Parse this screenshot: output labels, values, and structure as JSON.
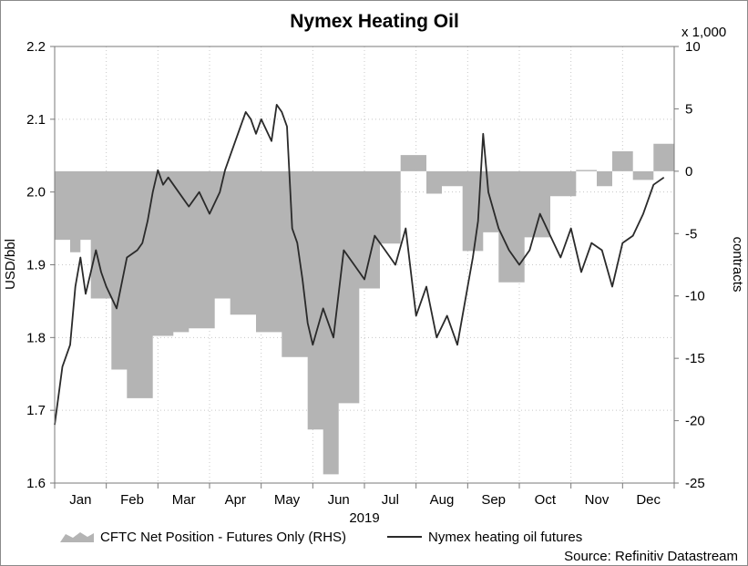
{
  "chart_data": {
    "type": "line",
    "title": "Nymex Heating Oil",
    "xlabel": "2019",
    "ylabel": "USD/bbl",
    "y2label": "contracts",
    "y2_multiplier_label": "x 1,000",
    "ylim": [
      1.6,
      2.2
    ],
    "y2lim": [
      -25,
      10
    ],
    "yticks": [
      "1.6",
      "1.7",
      "1.8",
      "1.9",
      "2.0",
      "2.1",
      "2.2"
    ],
    "y2ticks": [
      "-25",
      "-20",
      "-15",
      "-10",
      "-5",
      "0",
      "5",
      "10"
    ],
    "months": [
      "Jan",
      "Feb",
      "Mar",
      "Apr",
      "May",
      "Jun",
      "Jul",
      "Aug",
      "Sep",
      "Oct",
      "Nov",
      "Dec"
    ],
    "grid": true,
    "legend_position": "bottom",
    "source": "Source: Refinitiv Datastream",
    "series": [
      {
        "name": "CFTC Net Position - Futures Only (RHS)",
        "type": "area-step",
        "axis": "right",
        "color": "#b4b4b4",
        "x": [
          0,
          0.3,
          0.5,
          0.7,
          1.1,
          1.4,
          1.9,
          2.3,
          2.6,
          3.1,
          3.4,
          3.9,
          4.4,
          4.9,
          5.2,
          5.5,
          5.9,
          6.3,
          6.7,
          7.2,
          7.5,
          7.9,
          8.3,
          8.6,
          9.1,
          9.6,
          10.1,
          10.5,
          10.8,
          11.2,
          11.6,
          11.85
        ],
        "values": [
          -5.5,
          -6.5,
          -5.5,
          -10.2,
          -15.9,
          -18.2,
          -13.2,
          -12.9,
          -12.6,
          -10.2,
          -11.5,
          -12.9,
          -14.9,
          -20.7,
          -24.3,
          -18.6,
          -9.4,
          -5.8,
          1.3,
          -1.8,
          -1.2,
          -6.4,
          -4.9,
          -8.9,
          -5.3,
          -2.0,
          0.1,
          -1.2,
          1.6,
          -0.7,
          2.2,
          2.2
        ]
      },
      {
        "name": "Nymex heating oil futures",
        "type": "line",
        "axis": "left",
        "color": "#2a2a2a",
        "x": [
          0,
          0.15,
          0.3,
          0.4,
          0.5,
          0.6,
          0.7,
          0.8,
          0.9,
          1.0,
          1.2,
          1.4,
          1.6,
          1.7,
          1.8,
          1.9,
          2.0,
          2.1,
          2.2,
          2.4,
          2.6,
          2.8,
          3.0,
          3.2,
          3.3,
          3.5,
          3.6,
          3.7,
          3.8,
          3.9,
          4.0,
          4.2,
          4.3,
          4.4,
          4.5,
          4.6,
          4.7,
          4.8,
          4.9,
          5.0,
          5.2,
          5.4,
          5.6,
          5.8,
          6.0,
          6.2,
          6.4,
          6.6,
          6.8,
          7.0,
          7.2,
          7.4,
          7.6,
          7.8,
          8.0,
          8.1,
          8.2,
          8.3,
          8.4,
          8.6,
          8.8,
          9.0,
          9.2,
          9.4,
          9.6,
          9.8,
          10.0,
          10.2,
          10.4,
          10.6,
          10.8,
          11.0,
          11.2,
          11.4,
          11.6,
          11.8
        ],
        "values": [
          1.68,
          1.76,
          1.79,
          1.87,
          1.91,
          1.86,
          1.89,
          1.92,
          1.89,
          1.87,
          1.84,
          1.91,
          1.92,
          1.93,
          1.96,
          2.0,
          2.03,
          2.01,
          2.02,
          2.0,
          1.98,
          2.0,
          1.97,
          2.0,
          2.03,
          2.07,
          2.09,
          2.11,
          2.1,
          2.08,
          2.1,
          2.07,
          2.12,
          2.11,
          2.09,
          1.95,
          1.93,
          1.88,
          1.82,
          1.79,
          1.84,
          1.8,
          1.92,
          1.9,
          1.88,
          1.94,
          1.92,
          1.9,
          1.95,
          1.83,
          1.87,
          1.8,
          1.83,
          1.79,
          1.87,
          1.91,
          1.96,
          2.08,
          2.0,
          1.95,
          1.92,
          1.9,
          1.92,
          1.97,
          1.94,
          1.91,
          1.95,
          1.89,
          1.93,
          1.92,
          1.87,
          1.93,
          1.94,
          1.97,
          2.01,
          2.02
        ]
      }
    ]
  }
}
